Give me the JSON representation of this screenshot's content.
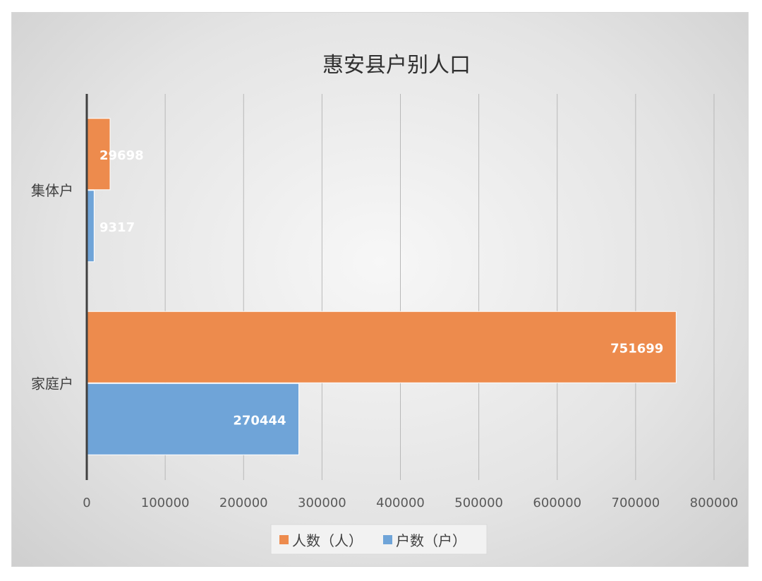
{
  "chart_data": {
    "type": "bar",
    "orientation": "horizontal",
    "title": "惠安县户别人口",
    "categories": [
      "集体户",
      "家庭户"
    ],
    "series": [
      {
        "name": "人数（人）",
        "color": "#ed8b4d",
        "values": [
          29698,
          751699
        ]
      },
      {
        "name": "户数（户）",
        "color": "#6fa4d8",
        "values": [
          9317,
          270444
        ]
      }
    ],
    "xlim": [
      0,
      800000
    ],
    "x_ticks": [
      "0",
      "100000",
      "200000",
      "300000",
      "400000",
      "500000",
      "600000",
      "700000",
      "800000"
    ],
    "grid": true,
    "legend_position": "bottom",
    "data_labels": true
  }
}
